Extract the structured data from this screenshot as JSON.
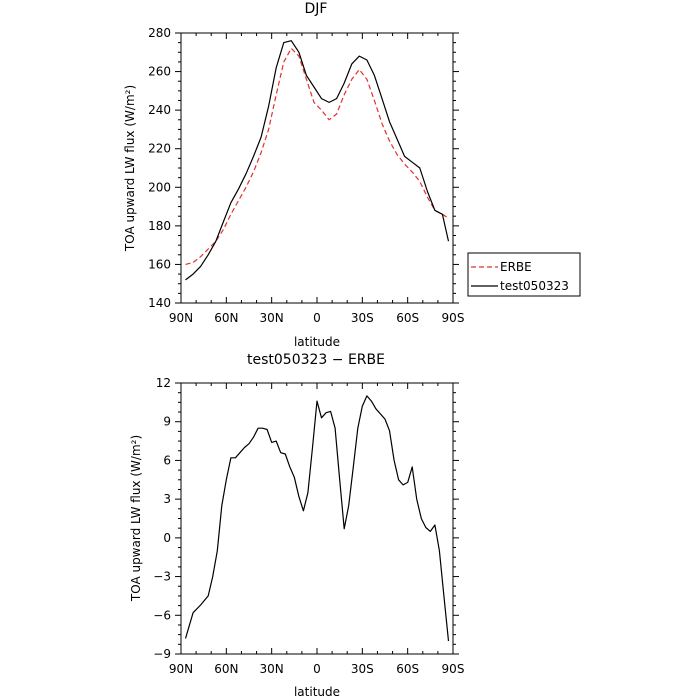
{
  "chart_data": [
    {
      "type": "line",
      "title": "DJF",
      "xlabel": "latitude",
      "ylabel": "TOA upward LW flux (W/m²)",
      "xlim": [
        -90,
        90
      ],
      "ylim": [
        140,
        280
      ],
      "xticks": [
        -90,
        -60,
        -30,
        0,
        30,
        60,
        90
      ],
      "xtick_labels": [
        "90N",
        "60N",
        "30N",
        "0",
        "30S",
        "60S",
        "90S"
      ],
      "yticks": [
        140,
        160,
        180,
        200,
        220,
        240,
        260,
        280
      ],
      "ytick_labels": [
        "140",
        "160",
        "180",
        "200",
        "220",
        "240",
        "260",
        "280"
      ],
      "legend_position": "right",
      "series": [
        {
          "name": "ERBE",
          "color": "#e03030",
          "dash": "dashed",
          "x": [
            -87,
            -82,
            -77,
            -72,
            -67,
            -62,
            -57,
            -52,
            -47,
            -42,
            -37,
            -32,
            -27,
            -22,
            -17,
            -12,
            -7,
            -2,
            3,
            8,
            13,
            18,
            23,
            28,
            33,
            38,
            43,
            48,
            53,
            58,
            63,
            68,
            73,
            78,
            83,
            87
          ],
          "y": [
            160,
            161,
            164,
            168,
            172,
            178,
            186,
            193,
            200,
            208,
            218,
            230,
            248,
            265,
            272,
            268,
            256,
            244,
            240,
            235,
            238,
            248,
            256,
            261,
            256,
            245,
            233,
            224,
            217,
            212,
            208,
            203,
            195,
            188,
            186,
            184
          ]
        },
        {
          "name": "test050323",
          "color": "#000000",
          "dash": "solid",
          "x": [
            -87,
            -82,
            -77,
            -72,
            -67,
            -62,
            -57,
            -52,
            -47,
            -42,
            -37,
            -32,
            -27,
            -22,
            -17,
            -12,
            -7,
            -2,
            3,
            8,
            13,
            18,
            23,
            28,
            33,
            38,
            43,
            48,
            53,
            58,
            63,
            68,
            73,
            78,
            83,
            87
          ],
          "y": [
            152,
            155,
            159,
            165,
            172,
            182,
            192,
            199,
            207,
            216,
            226,
            242,
            262,
            275,
            276,
            270,
            258,
            252,
            246,
            244,
            246,
            254,
            264,
            268,
            266,
            258,
            246,
            234,
            225,
            216,
            213,
            210,
            198,
            188,
            186,
            172
          ]
        }
      ]
    },
    {
      "type": "line",
      "title": "test050323 − ERBE",
      "xlabel": "latitude",
      "ylabel": "TOA upward LW flux (W/m²)",
      "xlim": [
        -90,
        90
      ],
      "ylim": [
        -9,
        12
      ],
      "xticks": [
        -90,
        -60,
        -30,
        0,
        30,
        60,
        90
      ],
      "xtick_labels": [
        "90N",
        "60N",
        "30N",
        "0",
        "30S",
        "60S",
        "90S"
      ],
      "yticks": [
        -9,
        -6,
        -3,
        0,
        3,
        6,
        9,
        12
      ],
      "ytick_labels": [
        "−9",
        "−6",
        "−3",
        "0",
        "3",
        "6",
        "9",
        "12"
      ],
      "series": [
        {
          "color": "#000000",
          "dash": "solid",
          "x": [
            -87,
            -82,
            -77,
            -72,
            -69,
            -66,
            -63,
            -60,
            -57,
            -54,
            -51,
            -48,
            -45,
            -42,
            -39,
            -36,
            -33,
            -30,
            -27,
            -24,
            -21,
            -18,
            -15,
            -12,
            -9,
            -6,
            -3,
            0,
            3,
            6,
            9,
            12,
            15,
            18,
            21,
            24,
            27,
            30,
            33,
            36,
            39,
            42,
            45,
            48,
            51,
            54,
            57,
            60,
            63,
            66,
            69,
            72,
            75,
            78,
            81,
            84,
            87
          ],
          "y": [
            -7.8,
            -5.8,
            -5.2,
            -4.5,
            -3.0,
            -1.0,
            2.5,
            4.5,
            6.2,
            6.2,
            6.6,
            7.0,
            7.3,
            7.8,
            8.5,
            8.5,
            8.4,
            7.4,
            7.5,
            6.6,
            6.5,
            5.5,
            4.7,
            3.2,
            2.1,
            3.5,
            7.0,
            10.6,
            9.3,
            9.7,
            9.8,
            8.5,
            4.5,
            0.7,
            2.5,
            5.5,
            8.5,
            10.2,
            11.0,
            10.6,
            10.0,
            9.6,
            9.2,
            8.3,
            6.0,
            4.5,
            4.1,
            4.3,
            5.5,
            3.0,
            1.5,
            0.8,
            0.5,
            1.0,
            -1.0,
            -4.5,
            -8.0
          ]
        }
      ]
    }
  ]
}
